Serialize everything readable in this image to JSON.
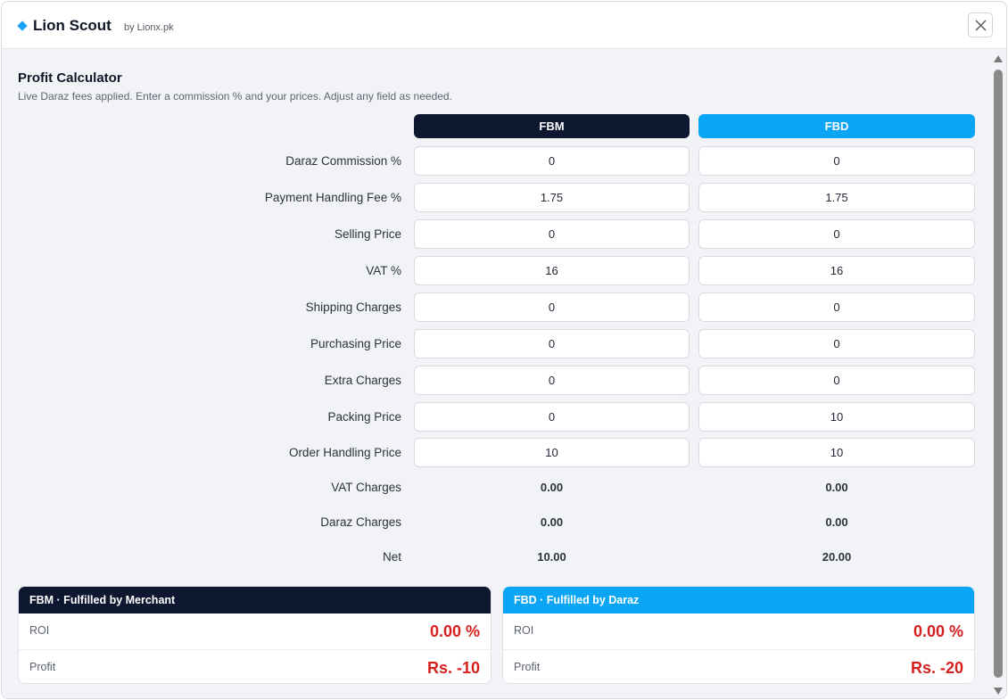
{
  "header": {
    "title": "Lion Scout",
    "byline": "by Lionx.pk"
  },
  "calculator": {
    "title": "Profit Calculator",
    "subtitle": "Live Daraz fees applied. Enter a commission % and your prices. Adjust any field as needed.",
    "columns": {
      "fbm": "FBM",
      "fbd": "FBD"
    },
    "inputs": [
      {
        "label": "Daraz Commission %",
        "fbm": "0",
        "fbd": "0"
      },
      {
        "label": "Payment Handling Fee %",
        "fbm": "1.75",
        "fbd": "1.75"
      },
      {
        "label": "Selling Price",
        "fbm": "0",
        "fbd": "0"
      },
      {
        "label": "VAT %",
        "fbm": "16",
        "fbd": "16"
      },
      {
        "label": "Shipping Charges",
        "fbm": "0",
        "fbd": "0"
      },
      {
        "label": "Purchasing Price",
        "fbm": "0",
        "fbd": "0"
      },
      {
        "label": "Extra Charges",
        "fbm": "0",
        "fbd": "0"
      },
      {
        "label": "Packing Price",
        "fbm": "0",
        "fbd": "10"
      },
      {
        "label": "Order Handling Price",
        "fbm": "10",
        "fbd": "10"
      }
    ],
    "computed": [
      {
        "label": "VAT Charges",
        "fbm": "0.00",
        "fbd": "0.00"
      },
      {
        "label": "Daraz Charges",
        "fbm": "0.00",
        "fbd": "0.00"
      },
      {
        "label": "Net",
        "fbm": "10.00",
        "fbd": "20.00"
      }
    ]
  },
  "cards": {
    "fbm": {
      "title": "FBM · Fulfilled by Merchant",
      "roi_label": "ROI",
      "roi": "0.00 %",
      "profit_label": "Profit",
      "profit": "Rs. -10"
    },
    "fbd": {
      "title": "FBD · Fulfilled by Daraz",
      "roi_label": "ROI",
      "roi": "0.00 %",
      "profit_label": "Profit",
      "profit": "Rs. -20"
    }
  },
  "colors": {
    "fbm_accent": "#0d1730",
    "fbd_accent": "#0aa6f5",
    "negative_value": "#d6201f"
  }
}
